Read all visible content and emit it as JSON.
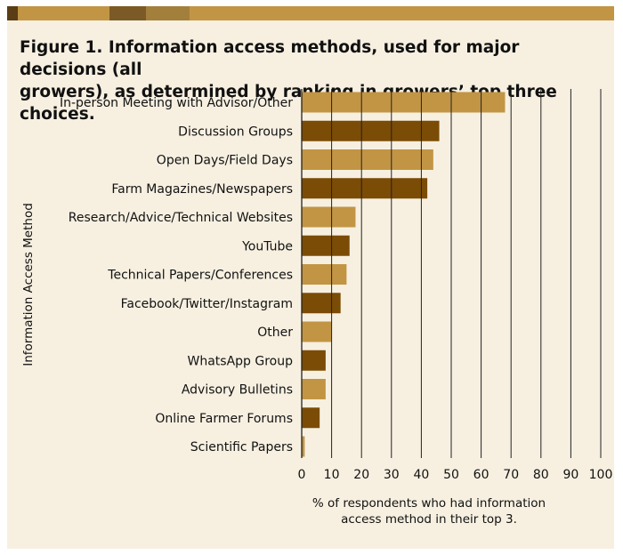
{
  "figure": {
    "title_line1": "Figure 1. Information access methods, used for major decisions (all",
    "title_line2": "growers), as determined by ranking in growers’ top three choices."
  },
  "colors": {
    "panel_bg": "#f7f0e1",
    "bar_light": "#c29544",
    "bar_dark": "#7b4c06",
    "gridline": "#222222",
    "topbar": [
      "#5a3d14",
      "#c29544",
      "#7c5a26",
      "#a37f3c",
      "#c29544"
    ]
  },
  "chart_data": {
    "type": "bar",
    "orientation": "horizontal",
    "categories": [
      "In-person Meeting with Advisor/Other",
      "Discussion Groups",
      "Open Days/Field Days",
      "Farm Magazines/Newspapers",
      "Research/Advice/Technical Websites",
      "YouTube",
      "Technical Papers/Conferences",
      "Facebook/Twitter/Instagram",
      "Other",
      "WhatsApp Group",
      "Advisory Bulletins",
      "Online Farmer Forums",
      "Scientific Papers"
    ],
    "values": [
      68,
      46,
      44,
      42,
      18,
      16,
      15,
      13,
      10,
      8,
      8,
      6,
      1
    ],
    "xlabel": "% of respondents who had information access method in their top 3.",
    "xlabel_lines": [
      "% of respondents who had information",
      "access method in their top 3."
    ],
    "ylabel": "Information Access Method",
    "xlim": [
      0,
      100
    ],
    "xticks": [
      0,
      10,
      20,
      30,
      40,
      50,
      60,
      70,
      80,
      90,
      100
    ],
    "grid": "vertical",
    "bar_colors": "alternating light/dark"
  }
}
